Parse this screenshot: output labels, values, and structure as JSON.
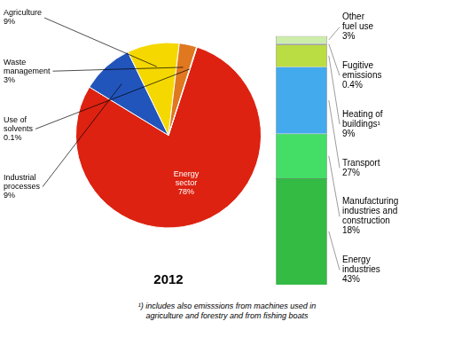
{
  "chart_data": [
    {
      "type": "pie",
      "title": "2012",
      "categories": [
        "Energy\nsector",
        "Industrial\nprocesses",
        "Agriculture",
        "Waste\nmanagement",
        "Use of\nsolvents"
      ],
      "values": [
        78,
        9,
        9,
        3,
        0.1
      ],
      "value_labels": [
        "78%",
        "9%",
        "9%",
        "3%",
        "0.1%"
      ],
      "colors": [
        "#dd2211",
        "#2255bb",
        "#f5d800",
        "#e07820",
        "#f5d800"
      ],
      "data_labels": true
    },
    {
      "type": "bar",
      "stacked": true,
      "categories": [
        null
      ],
      "series": [
        {
          "name": "Energy\nindustries",
          "color": "#33bb44",
          "values": [
            43
          ],
          "value_labels": [
            "43%"
          ]
        },
        {
          "name": "Manufacturing\nindustries and\nconstruction",
          "color": "#44dd66",
          "values": [
            18
          ],
          "value_labels": [
            "18%"
          ]
        },
        {
          "name": "Transport",
          "color": "#44aaee",
          "values": [
            27
          ],
          "value_labels": [
            "27%"
          ]
        },
        {
          "name": "Heating of\nbuildings¹",
          "color": "#bbdd44",
          "values": [
            9
          ],
          "value_labels": [
            "9%"
          ]
        },
        {
          "name": "Fugitive\nemissions",
          "color": "#aaaadd",
          "values": [
            0.4
          ],
          "value_labels": [
            "0.4%"
          ]
        },
        {
          "name": "Other\nfuel use",
          "color": "#cceeaa",
          "values": [
            3
          ],
          "value_labels": [
            "3%"
          ]
        }
      ],
      "ylim": [
        0,
        110
      ],
      "yticks": [
        0,
        10,
        20,
        30,
        40,
        50,
        60,
        70,
        80,
        90,
        100,
        110
      ],
      "tick_labels": false,
      "grid": false,
      "data_labels": true,
      "annotations": [
        "¹) includes also emisssions from machines used in\nagriculture and forestry and from fishing boats"
      ]
    }
  ]
}
